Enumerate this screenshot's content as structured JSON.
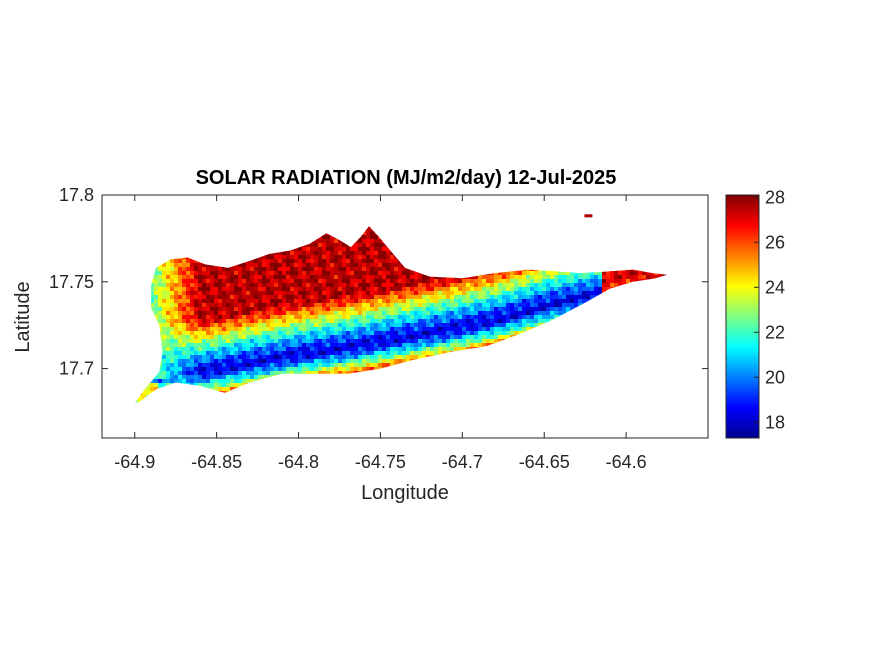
{
  "chart_data": {
    "type": "heatmap",
    "title": "SOLAR RADIATION (MJ/m2/day) 12-Jul-2025",
    "xlabel": "Longitude",
    "ylabel": "Latitude",
    "xlim": [
      -64.92,
      -64.55
    ],
    "ylim": [
      17.66,
      17.8
    ],
    "xticks": [
      "-64.9",
      "-64.85",
      "-64.8",
      "-64.75",
      "-64.7",
      "-64.65",
      "-64.6"
    ],
    "yticks": [
      "17.7",
      "17.75",
      "17.8"
    ],
    "colorbar": {
      "colormap": "jet",
      "range": [
        17.3,
        28.1
      ],
      "ticks": [
        "18",
        "20",
        "22",
        "24",
        "26",
        "28"
      ]
    },
    "grid": false,
    "island_outline": [
      [
        -64.9,
        17.68
      ],
      [
        -64.894,
        17.688
      ],
      [
        -64.885,
        17.698
      ],
      [
        -64.883,
        17.71
      ],
      [
        -64.885,
        17.725
      ],
      [
        -64.89,
        17.735
      ],
      [
        -64.89,
        17.748
      ],
      [
        -64.887,
        17.758
      ],
      [
        -64.878,
        17.763
      ],
      [
        -64.868,
        17.764
      ],
      [
        -64.857,
        17.76
      ],
      [
        -64.843,
        17.758
      ],
      [
        -64.83,
        17.762
      ],
      [
        -64.818,
        17.766
      ],
      [
        -64.805,
        17.768
      ],
      [
        -64.793,
        17.772
      ],
      [
        -64.783,
        17.778
      ],
      [
        -64.775,
        17.774
      ],
      [
        -64.768,
        17.77
      ],
      [
        -64.762,
        17.776
      ],
      [
        -64.757,
        17.782
      ],
      [
        -64.751,
        17.776
      ],
      [
        -64.744,
        17.768
      ],
      [
        -64.735,
        17.758
      ],
      [
        -64.72,
        17.753
      ],
      [
        -64.7,
        17.752
      ],
      [
        -64.68,
        17.755
      ],
      [
        -64.66,
        17.757
      ],
      [
        -64.643,
        17.756
      ],
      [
        -64.628,
        17.755
      ],
      [
        -64.61,
        17.756
      ],
      [
        -64.596,
        17.757
      ],
      [
        -64.584,
        17.755
      ],
      [
        -64.575,
        17.754
      ],
      [
        -64.582,
        17.752
      ],
      [
        -64.596,
        17.75
      ],
      [
        -64.61,
        17.746
      ],
      [
        -64.625,
        17.738
      ],
      [
        -64.645,
        17.728
      ],
      [
        -64.665,
        17.72
      ],
      [
        -64.685,
        17.713
      ],
      [
        -64.705,
        17.71
      ],
      [
        -64.73,
        17.705
      ],
      [
        -64.75,
        17.7
      ],
      [
        -64.77,
        17.697
      ],
      [
        -64.79,
        17.697
      ],
      [
        -64.81,
        17.697
      ],
      [
        -64.83,
        17.692
      ],
      [
        -64.845,
        17.686
      ],
      [
        -64.86,
        17.69
      ],
      [
        -64.875,
        17.692
      ],
      [
        -64.887,
        17.688
      ],
      [
        -64.897,
        17.681
      ]
    ],
    "islet": [
      -64.623,
      17.788
    ],
    "field": {
      "description": "values in MJ/m2/day across the island",
      "north_coast": 27.5,
      "east_tip": 26.5,
      "west_end": 22.5,
      "southwest_tip": 24,
      "band_minimum": 18.2,
      "band": [
        [
          -64.86,
          17.698
        ],
        [
          -64.83,
          17.703
        ],
        [
          -64.8,
          17.708
        ],
        [
          -64.77,
          17.712
        ],
        [
          -64.74,
          17.717
        ],
        [
          -64.71,
          17.722
        ],
        [
          -64.68,
          17.728
        ],
        [
          -64.65,
          17.736
        ],
        [
          -64.62,
          17.742
        ]
      ]
    }
  }
}
